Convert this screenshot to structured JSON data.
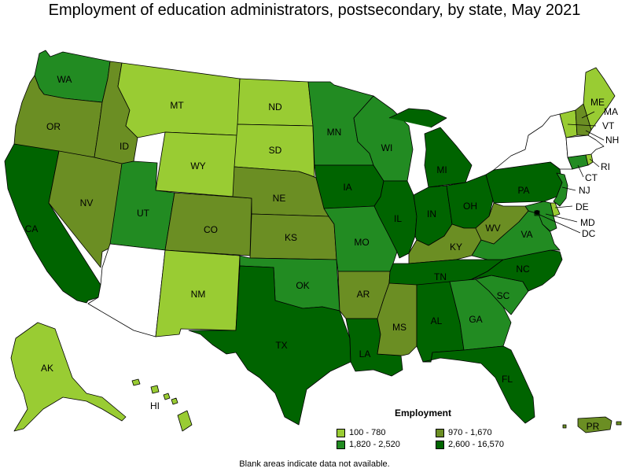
{
  "title": "Employment of education administrators, postsecondary, by state, May 2021",
  "legend": {
    "title": "Employment",
    "items": [
      {
        "label": "100 - 780",
        "color": "#99cc33"
      },
      {
        "label": "970 - 1,670",
        "color": "#6b8e23"
      },
      {
        "label": "1,820 - 2,520",
        "color": "#228b22"
      },
      {
        "label": "2,600 - 16,570",
        "color": "#006400"
      }
    ]
  },
  "footnote": "Blank areas indicate data not available.",
  "colors": {
    "c1": "#99cc33",
    "c2": "#6b8e23",
    "c3": "#228b22",
    "c4": "#006400",
    "na": "#ffffff"
  },
  "states": [
    {
      "abbr": "WA",
      "class": "c3"
    },
    {
      "abbr": "OR",
      "class": "c2"
    },
    {
      "abbr": "CA",
      "class": "c4"
    },
    {
      "abbr": "NV",
      "class": "c2"
    },
    {
      "abbr": "ID",
      "class": "c2"
    },
    {
      "abbr": "MT",
      "class": "c1"
    },
    {
      "abbr": "WY",
      "class": "c1"
    },
    {
      "abbr": "UT",
      "class": "c3"
    },
    {
      "abbr": "AZ",
      "class": "na"
    },
    {
      "abbr": "CO",
      "class": "c2"
    },
    {
      "abbr": "NM",
      "class": "c1"
    },
    {
      "abbr": "ND",
      "class": "c1"
    },
    {
      "abbr": "SD",
      "class": "c1"
    },
    {
      "abbr": "NE",
      "class": "c2"
    },
    {
      "abbr": "KS",
      "class": "c2"
    },
    {
      "abbr": "OK",
      "class": "c3"
    },
    {
      "abbr": "TX",
      "class": "c4"
    },
    {
      "abbr": "MN",
      "class": "c3"
    },
    {
      "abbr": "IA",
      "class": "c4"
    },
    {
      "abbr": "MO",
      "class": "c3"
    },
    {
      "abbr": "AR",
      "class": "c2"
    },
    {
      "abbr": "LA",
      "class": "c4"
    },
    {
      "abbr": "WI",
      "class": "c3"
    },
    {
      "abbr": "IL",
      "class": "c4"
    },
    {
      "abbr": "MI",
      "class": "c4"
    },
    {
      "abbr": "IN",
      "class": "c4"
    },
    {
      "abbr": "OH",
      "class": "c4"
    },
    {
      "abbr": "KY",
      "class": "c2"
    },
    {
      "abbr": "TN",
      "class": "c4"
    },
    {
      "abbr": "MS",
      "class": "c2"
    },
    {
      "abbr": "AL",
      "class": "c4"
    },
    {
      "abbr": "GA",
      "class": "c3"
    },
    {
      "abbr": "FL",
      "class": "c4"
    },
    {
      "abbr": "SC",
      "class": "c3"
    },
    {
      "abbr": "NC",
      "class": "c4"
    },
    {
      "abbr": "VA",
      "class": "c3"
    },
    {
      "abbr": "WV",
      "class": "c2"
    },
    {
      "abbr": "PA",
      "class": "c4"
    },
    {
      "abbr": "NY",
      "class": "na"
    },
    {
      "abbr": "NJ",
      "class": "c3"
    },
    {
      "abbr": "DE",
      "class": "c1"
    },
    {
      "abbr": "MD",
      "class": "c3"
    },
    {
      "abbr": "DC",
      "class": "c4"
    },
    {
      "abbr": "CT",
      "class": "c3"
    },
    {
      "abbr": "RI",
      "class": "c1"
    },
    {
      "abbr": "MA",
      "class": "na"
    },
    {
      "abbr": "VT",
      "class": "c1"
    },
    {
      "abbr": "NH",
      "class": "c2"
    },
    {
      "abbr": "ME",
      "class": "c1"
    },
    {
      "abbr": "AK",
      "class": "c1"
    },
    {
      "abbr": "HI",
      "class": "c1"
    },
    {
      "abbr": "PR",
      "class": "c2"
    }
  ]
}
